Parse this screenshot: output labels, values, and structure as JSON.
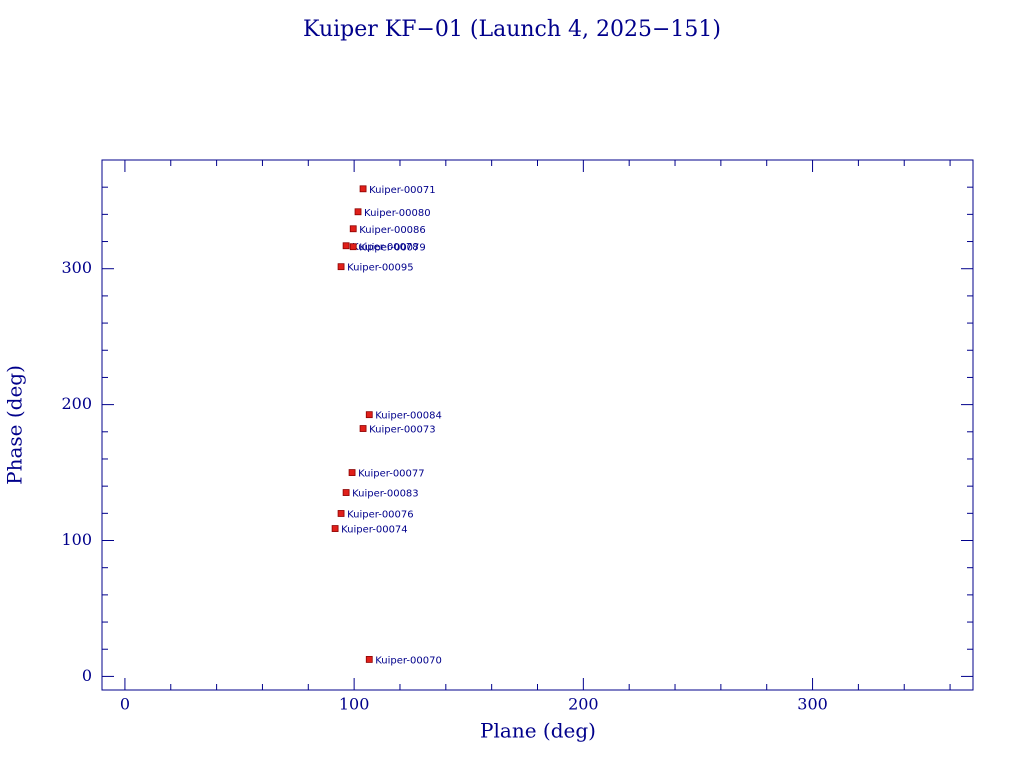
{
  "chart_data": {
    "type": "scatter",
    "title": "Kuiper KF−01 (Launch 4, 2025−151)",
    "x_label": "Plane (deg)",
    "y_label": "Phase (deg)",
    "xlim": [
      -10,
      370
    ],
    "ylim": [
      -10,
      380
    ],
    "xticks": [
      0,
      100,
      200,
      300
    ],
    "yticks": [
      0,
      100,
      200,
      300
    ],
    "xminorticks": [
      20,
      40,
      60,
      80,
      120,
      140,
      160,
      180,
      220,
      240,
      260,
      280,
      320,
      340,
      360
    ],
    "yminorticks": [
      20,
      40,
      60,
      80,
      120,
      140,
      160,
      180,
      220,
      240,
      260,
      280,
      320,
      340,
      360
    ],
    "axis_color": "#00008b",
    "marker_color": "#e0201a",
    "label_color": "#00008b",
    "points": [
      {
        "label": "Kuiper-00071",
        "x": 103.9,
        "y": 358.8
      },
      {
        "label": "Kuiper-00080",
        "x": 101.7,
        "y": 341.9
      },
      {
        "label": "Kuiper-00086",
        "x": 99.6,
        "y": 329.4
      },
      {
        "label": "Kuiper-00078",
        "x": 96.5,
        "y": 316.9
      },
      {
        "label": "Kuiper-00079",
        "x": 99.6,
        "y": 316.2
      },
      {
        "label": "Kuiper-00095",
        "x": 94.3,
        "y": 301.5
      },
      {
        "label": "Kuiper-00084",
        "x": 106.6,
        "y": 192.6
      },
      {
        "label": "Kuiper-00073",
        "x": 103.9,
        "y": 182.4
      },
      {
        "label": "Kuiper-00077",
        "x": 99.1,
        "y": 150.0
      },
      {
        "label": "Kuiper-00083",
        "x": 96.5,
        "y": 135.3
      },
      {
        "label": "Kuiper-00076",
        "x": 94.3,
        "y": 119.9
      },
      {
        "label": "Kuiper-00074",
        "x": 91.7,
        "y": 108.8
      },
      {
        "label": "Kuiper-00070",
        "x": 106.6,
        "y": 12.5
      }
    ]
  }
}
